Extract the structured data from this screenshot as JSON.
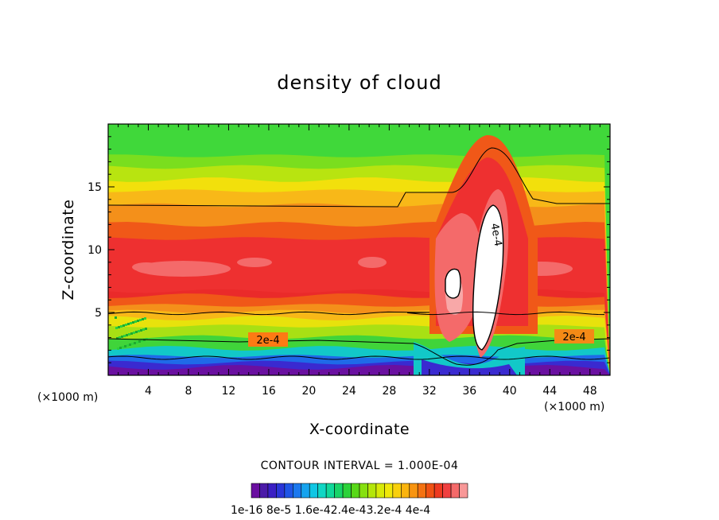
{
  "chart_data": {
    "type": "heatmap",
    "title": "density of cloud",
    "xlabel": "X-coordinate",
    "ylabel": "Z-coordinate",
    "x_unit_note": "(×1000 m)",
    "xlim": [
      0,
      50
    ],
    "ylim": [
      0,
      20
    ],
    "x_ticks": [
      4,
      8,
      12,
      16,
      20,
      24,
      28,
      32,
      36,
      40,
      44,
      48
    ],
    "y_ticks": [
      5,
      10,
      15
    ],
    "contour_labels": [
      "2e-4",
      "2e-4",
      "4e-4"
    ],
    "contour_interval_text": "CONTOUR INTERVAL = 1.000E-04",
    "colorbar": {
      "tick_labels": [
        "1e-16",
        "8e-5",
        "1.6e-4",
        "2.4e-4",
        "3.2e-4",
        "4e-4"
      ],
      "tick_labels_joined": "1e-16 8e-5 1.6e-42.4e-43.2e-4 4e-4",
      "colors": [
        "#6a0fa0",
        "#4b1aa8",
        "#3a1fc4",
        "#2a35d8",
        "#1f55e6",
        "#1b78ee",
        "#16a3ee",
        "#10c6e4",
        "#10d6c4",
        "#10d89a",
        "#18d468",
        "#2cd23a",
        "#58d818",
        "#86e010",
        "#b4e60a",
        "#d8ea08",
        "#f0e80a",
        "#f8d00c",
        "#fab40e",
        "#f89410",
        "#f47212",
        "#f05214",
        "#ee3a20",
        "#f04040",
        "#f46a6a",
        "#f89898"
      ]
    },
    "levels": {
      "above_5": "#ffffff",
      "4e-4": "#f8a8a8",
      "3.6e-4": "#f47878",
      "3.2e-4": "#f04848",
      "2.8e-4": "#ee3030",
      "2.4e-4": "#f05818",
      "2.0e-4": "#f4901a",
      "1.6e-4": "#f8b818",
      "1.2e-4": "#d8e410",
      "0.8e-4": "#80dc20",
      "0.4e-4": "#28d03c",
      "0.2e-4": "#12c8c0",
      "0.1e-4": "#1a5ee8",
      "low": "#6a10a0"
    }
  }
}
